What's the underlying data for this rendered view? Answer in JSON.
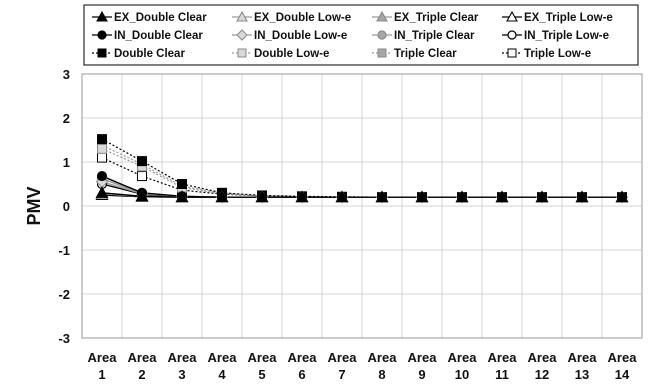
{
  "chart_data": {
    "type": "line",
    "title": "",
    "xlabel": "",
    "ylabel": "PMV",
    "ylim": [
      -3,
      3
    ],
    "yticks": [
      "3",
      "2",
      "1",
      "0",
      "-1",
      "-2",
      "-3"
    ],
    "categories": [
      "Area 1",
      "Area 2",
      "Area 3",
      "Area 4",
      "Area 5",
      "Area 6",
      "Area 7",
      "Area 8",
      "Area 9",
      "Area 10",
      "Area 11",
      "Area 12",
      "Area 13",
      "Area 14"
    ],
    "grid": true,
    "legend_position": "top",
    "series": [
      {
        "name": "EX_Double Clear",
        "line": "solid",
        "color": "#000000",
        "marker": "triangle",
        "marker_fill": "#000000",
        "values": [
          0.3,
          0.22,
          0.2,
          0.2,
          0.2,
          0.2,
          0.2,
          0.2,
          0.2,
          0.2,
          0.2,
          0.2,
          0.2,
          0.2
        ]
      },
      {
        "name": "EX_Double Low-e",
        "line": "solid",
        "color": "#9a9a9a",
        "marker": "triangle",
        "marker_fill": "#d9d9d9",
        "values": [
          0.28,
          0.22,
          0.2,
          0.2,
          0.2,
          0.2,
          0.2,
          0.2,
          0.2,
          0.2,
          0.2,
          0.2,
          0.2,
          0.2
        ]
      },
      {
        "name": "EX_Triple Clear",
        "line": "solid",
        "color": "#9a9a9a",
        "marker": "triangle",
        "marker_fill": "#a6a6a6",
        "values": [
          0.29,
          0.22,
          0.2,
          0.2,
          0.2,
          0.2,
          0.2,
          0.2,
          0.2,
          0.2,
          0.2,
          0.2,
          0.2,
          0.2
        ]
      },
      {
        "name": "EX_Triple Low-e",
        "line": "solid",
        "color": "#000000",
        "marker": "triangle",
        "marker_fill": "#ffffff",
        "values": [
          0.25,
          0.21,
          0.2,
          0.2,
          0.2,
          0.2,
          0.2,
          0.2,
          0.2,
          0.2,
          0.2,
          0.2,
          0.2,
          0.2
        ]
      },
      {
        "name": "IN_Double Clear",
        "line": "solid",
        "color": "#000000",
        "marker": "circle",
        "marker_fill": "#000000",
        "values": [
          0.68,
          0.3,
          0.22,
          0.2,
          0.2,
          0.2,
          0.2,
          0.2,
          0.2,
          0.2,
          0.2,
          0.2,
          0.2,
          0.2
        ]
      },
      {
        "name": "IN_Double Low-e",
        "line": "solid",
        "color": "#9a9a9a",
        "marker": "diamond",
        "marker_fill": "#d9d9d9",
        "values": [
          0.55,
          0.28,
          0.22,
          0.2,
          0.2,
          0.2,
          0.2,
          0.2,
          0.2,
          0.2,
          0.2,
          0.2,
          0.2,
          0.2
        ]
      },
      {
        "name": "IN_Triple Clear",
        "line": "solid",
        "color": "#9a9a9a",
        "marker": "circle",
        "marker_fill": "#a6a6a6",
        "values": [
          0.62,
          0.29,
          0.22,
          0.2,
          0.2,
          0.2,
          0.2,
          0.2,
          0.2,
          0.2,
          0.2,
          0.2,
          0.2,
          0.2
        ]
      },
      {
        "name": "IN_Triple Low-e",
        "line": "solid",
        "color": "#000000",
        "marker": "circle",
        "marker_fill": "#ffffff",
        "values": [
          0.5,
          0.27,
          0.21,
          0.2,
          0.2,
          0.2,
          0.2,
          0.2,
          0.2,
          0.2,
          0.2,
          0.2,
          0.2,
          0.2
        ]
      },
      {
        "name": "Double Clear",
        "line": "dotted",
        "color": "#000000",
        "marker": "square",
        "marker_fill": "#000000",
        "values": [
          1.52,
          1.02,
          0.5,
          0.3,
          0.24,
          0.22,
          0.21,
          0.2,
          0.2,
          0.2,
          0.2,
          0.2,
          0.2,
          0.2
        ]
      },
      {
        "name": "Double Low-e",
        "line": "dotted",
        "color": "#9a9a9a",
        "marker": "square",
        "marker_fill": "#d9d9d9",
        "values": [
          1.3,
          0.9,
          0.42,
          0.28,
          0.23,
          0.21,
          0.2,
          0.2,
          0.2,
          0.2,
          0.2,
          0.2,
          0.2,
          0.2
        ]
      },
      {
        "name": "Triple Clear",
        "line": "dotted",
        "color": "#9a9a9a",
        "marker": "square",
        "marker_fill": "#a6a6a6",
        "values": [
          1.38,
          0.95,
          0.45,
          0.29,
          0.23,
          0.21,
          0.2,
          0.2,
          0.2,
          0.2,
          0.2,
          0.2,
          0.2,
          0.2
        ]
      },
      {
        "name": "Triple Low-e",
        "line": "dotted",
        "color": "#000000",
        "marker": "square",
        "marker_fill": "#ffffff",
        "values": [
          1.1,
          0.68,
          0.36,
          0.27,
          0.23,
          0.21,
          0.2,
          0.2,
          0.2,
          0.2,
          0.2,
          0.2,
          0.2,
          0.2
        ]
      }
    ]
  }
}
